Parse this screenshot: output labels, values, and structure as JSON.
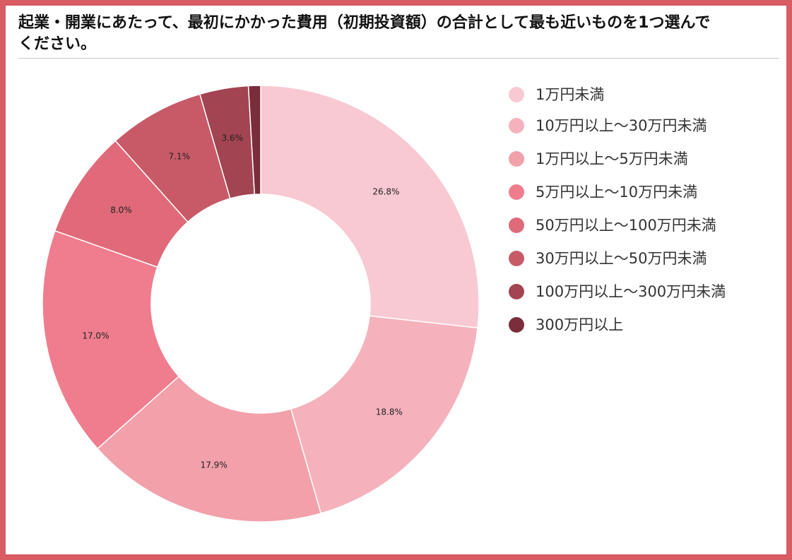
{
  "chart_data": {
    "type": "pie",
    "title": "起業・開業にあたって、最初にかかった費用（初期投資額）の合計として最も近いものを1つ選んでください。",
    "categories": [
      "1万円未満",
      "10万円以上～30万円未満",
      "1万円以上～5万円未満",
      "5万円以上～10万円未満",
      "50万円以上～100万円未満",
      "30万円以上～50万円未満",
      "100万円以上～300万円未満",
      "300万円以上"
    ],
    "values": [
      26.8,
      18.8,
      17.9,
      17.0,
      8.0,
      7.1,
      3.6,
      0.9
    ],
    "value_labels": [
      "26.8%",
      "18.8%",
      "17.9%",
      "17.0%",
      "8.0%",
      "7.1%",
      "3.6%",
      ""
    ],
    "colors": [
      "#f8c9d2",
      "#f5b2bd",
      "#f2a0aa",
      "#ef7d8e",
      "#e06a79",
      "#c85a68",
      "#a34452",
      "#7a2d3a"
    ],
    "donut": true,
    "legend_position": "right"
  }
}
